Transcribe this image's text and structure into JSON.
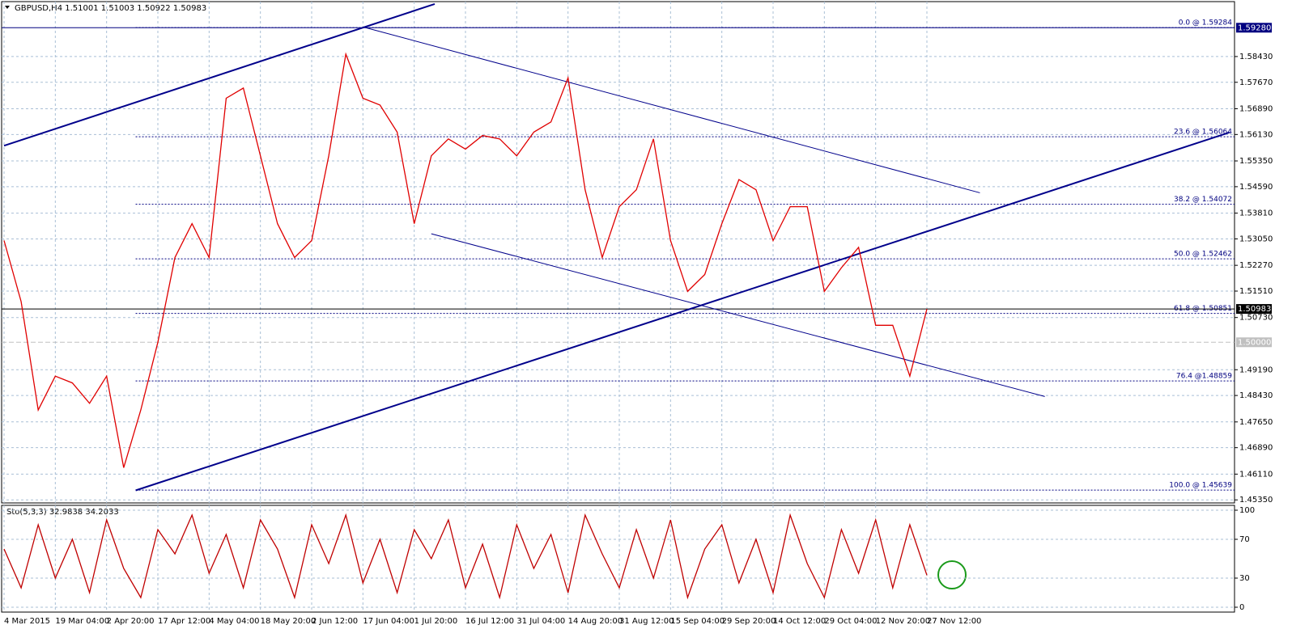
{
  "chart_data": [
    {
      "type": "line",
      "title": "GBPUSD,H4  1.51001 1.51003 1.50922 1.50983",
      "categories": [
        "4 Mar 2015",
        null,
        null,
        "19 Mar 04:00",
        null,
        null,
        "2 Apr 20:00",
        null,
        null,
        "17 Apr 12:00",
        null,
        null,
        "4 May 04:00",
        null,
        null,
        "18 May 20:00",
        null,
        null,
        "2 Jun 12:00",
        null,
        null,
        "17 Jun 04:00",
        null,
        null,
        "1 Jul 20:00",
        null,
        null,
        "16 Jul 12:00",
        null,
        null,
        "31 Jul 04:00",
        null,
        null,
        "14 Aug 20:00",
        null,
        null,
        "31 Aug 12:00",
        null,
        null,
        "15 Sep 04:00",
        null,
        null,
        "29 Sep 20:00",
        null,
        null,
        "14 Oct 12:00",
        null,
        null,
        "29 Oct 04:00",
        null,
        null,
        "12 Nov 20:00",
        null,
        null,
        "27 Nov 12:00",
        null,
        null,
        null,
        null,
        null,
        null,
        null,
        null,
        null,
        null,
        null,
        null,
        null,
        null,
        null,
        null,
        null,
        null
      ],
      "values": [
        1.53,
        1.512,
        1.48,
        1.49,
        1.488,
        1.482,
        1.49,
        1.463,
        1.48,
        1.5,
        1.525,
        1.535,
        1.525,
        1.572,
        1.575,
        1.555,
        1.535,
        1.525,
        1.53,
        1.555,
        1.585,
        1.572,
        1.57,
        1.562,
        1.535,
        1.555,
        1.56,
        1.557,
        1.561,
        1.56,
        1.555,
        1.562,
        1.565,
        1.578,
        1.545,
        1.525,
        1.54,
        1.545,
        1.56,
        1.53,
        1.515,
        1.52,
        1.535,
        1.548,
        1.545,
        1.53,
        1.54,
        1.54,
        1.515,
        1.522,
        1.528,
        1.505,
        1.505,
        1.49,
        1.50983,
        null,
        null,
        null,
        null,
        null,
        null,
        null,
        null,
        null,
        null,
        null,
        null,
        null,
        null,
        null,
        null,
        null,
        null
      ],
      "color": "#e00000",
      "ylim": [
        1.4526,
        1.6005
      ],
      "yticks": [
        {
          "value": 1.5843,
          "label": "1.58430"
        },
        {
          "value": 1.5767,
          "label": "1.57670"
        },
        {
          "value": 1.5689,
          "label": "1.56890"
        },
        {
          "value": 1.5613,
          "label": "1.56130"
        },
        {
          "value": 1.5535,
          "label": "1.55350"
        },
        {
          "value": 1.5459,
          "label": "1.54590"
        },
        {
          "value": 1.5381,
          "label": "1.53810"
        },
        {
          "value": 1.5305,
          "label": "1.53050"
        },
        {
          "value": 1.5227,
          "label": "1.52270"
        },
        {
          "value": 1.5151,
          "label": "1.51510"
        },
        {
          "value": 1.5073,
          "label": "1.50730"
        },
        {
          "value": 1.4919,
          "label": "1.49190"
        },
        {
          "value": 1.4843,
          "label": "1.48430"
        },
        {
          "value": 1.4765,
          "label": "1.47650"
        },
        {
          "value": 1.4689,
          "label": "1.46890"
        },
        {
          "value": 1.4611,
          "label": "1.46110"
        },
        {
          "value": 1.4535,
          "label": "1.45350"
        }
      ],
      "grid": true,
      "price_lines": [
        {
          "value": 1.5928,
          "label": "1.59280",
          "color": "#000080",
          "style": "solid"
        },
        {
          "value": 1.50983,
          "label": "1.50983",
          "color": "#000000",
          "style": "solid"
        },
        {
          "value": 1.5,
          "label": "1.50000",
          "color": "#c0c0c0",
          "style": "dashed"
        }
      ],
      "fib_levels": [
        {
          "value": 1.59284,
          "label": "0.0 @ 1.59284"
        },
        {
          "value": 1.56064,
          "label": "23.6 @ 1.56064"
        },
        {
          "value": 1.54072,
          "label": "38.2 @ 1.54072"
        },
        {
          "value": 1.52462,
          "label": "50.0 @ 1.52462"
        },
        {
          "value": 1.50851,
          "label": "61.8 @ 1.50851"
        },
        {
          "value": 1.48859,
          "label": "76.4 @1.48859"
        },
        {
          "value": 1.45639,
          "label": "100.0 @ 1.45639"
        }
      ],
      "trendlines": [
        {
          "from": [
            0,
            1.558
          ],
          "to": [
            25.2,
            1.5998
          ],
          "width": 2
        },
        {
          "from": [
            7.7,
            1.4563
          ],
          "to": [
            71.7,
            1.5619
          ],
          "width": 2
        },
        {
          "from": [
            21.1,
            1.5929
          ],
          "to": [
            57.1,
            1.5441
          ],
          "width": 1
        },
        {
          "from": [
            25,
            1.532
          ],
          "to": [
            60.9,
            1.484
          ],
          "width": 1
        }
      ]
    },
    {
      "type": "line",
      "title": "Sto(5,3,3) 32.9838 34.2033",
      "values": [
        60,
        20,
        85,
        30,
        70,
        15,
        90,
        40,
        10,
        80,
        55,
        95,
        35,
        75,
        20,
        90,
        60,
        10,
        85,
        45,
        95,
        25,
        70,
        15,
        80,
        50,
        90,
        20,
        65,
        10,
        85,
        40,
        75,
        15,
        95,
        55,
        20,
        80,
        30,
        90,
        10,
        60,
        85,
        25,
        70,
        15,
        95,
        45,
        10,
        80,
        35,
        90,
        20,
        85,
        33,
        null,
        null,
        null,
        null,
        null,
        null,
        null,
        null,
        null,
        null,
        null,
        null,
        null,
        null,
        null,
        null,
        null,
        null
      ],
      "color": "#c00000",
      "ylim": [
        0,
        100
      ],
      "yticks": [
        100,
        70,
        30,
        0
      ]
    }
  ]
}
